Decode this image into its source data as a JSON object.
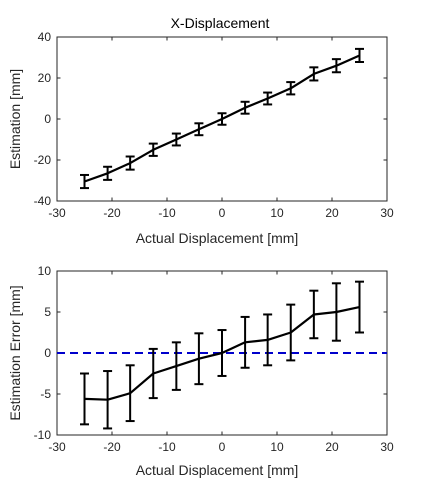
{
  "chart_data": [
    {
      "type": "line",
      "title": "X-Displacement",
      "xlabel": "Actual Displacement [mm]",
      "ylabel": "Estimation [mm]",
      "xlim": [
        -30,
        30
      ],
      "ylim": [
        -40,
        40
      ],
      "xticks": [
        -30,
        -20,
        -10,
        0,
        10,
        20,
        30
      ],
      "yticks": [
        -40,
        -20,
        0,
        20,
        40
      ],
      "xtick_labels": [
        "-30",
        "-20",
        "-10",
        "0",
        "10",
        "20",
        "30"
      ],
      "ytick_labels": [
        "-40",
        "-20",
        "0",
        "20",
        "40"
      ],
      "grid": false,
      "series": [
        {
          "color": "#000000",
          "x": [
            -25,
            -20.8,
            -16.7,
            -12.5,
            -8.3,
            -4.2,
            0,
            4.2,
            8.3,
            12.5,
            16.7,
            20.8,
            25
          ],
          "y": [
            -30.5,
            -26.5,
            -21.5,
            -15,
            -10,
            -5,
            0,
            5.5,
            10,
            15,
            22,
            26,
            31
          ],
          "err": [
            3.2,
            3.2,
            3.2,
            3.0,
            2.9,
            2.9,
            2.8,
            2.9,
            2.9,
            3.0,
            3.2,
            3.2,
            3.2
          ]
        }
      ],
      "reference_line": null
    },
    {
      "type": "line",
      "title": "",
      "xlabel": "Actual Displacement [mm]",
      "ylabel": "Estimation Error [mm]",
      "xlim": [
        -30,
        30
      ],
      "ylim": [
        -10,
        10
      ],
      "xticks": [
        -30,
        -20,
        -10,
        0,
        10,
        20,
        30
      ],
      "yticks": [
        -10,
        -5,
        0,
        5,
        10
      ],
      "xtick_labels": [
        "-30",
        "-20",
        "-10",
        "0",
        "10",
        "20",
        "30"
      ],
      "ytick_labels": [
        "-10",
        "-5",
        "0",
        "5",
        "10"
      ],
      "grid": false,
      "series": [
        {
          "color": "#000000",
          "x": [
            -25,
            -20.8,
            -16.7,
            -12.5,
            -8.3,
            -4.2,
            0,
            4.2,
            8.3,
            12.5,
            16.7,
            20.8,
            25
          ],
          "y": [
            -5.6,
            -5.7,
            -4.9,
            -2.5,
            -1.6,
            -0.7,
            0,
            1.3,
            1.6,
            2.5,
            4.7,
            5.0,
            5.6
          ],
          "err": [
            3.1,
            3.5,
            3.4,
            3.0,
            2.9,
            3.1,
            2.8,
            3.1,
            3.1,
            3.4,
            2.9,
            3.5,
            3.1
          ]
        }
      ],
      "reference_line": {
        "y": 0,
        "color": "#0000cc",
        "style": "dashed"
      }
    }
  ]
}
